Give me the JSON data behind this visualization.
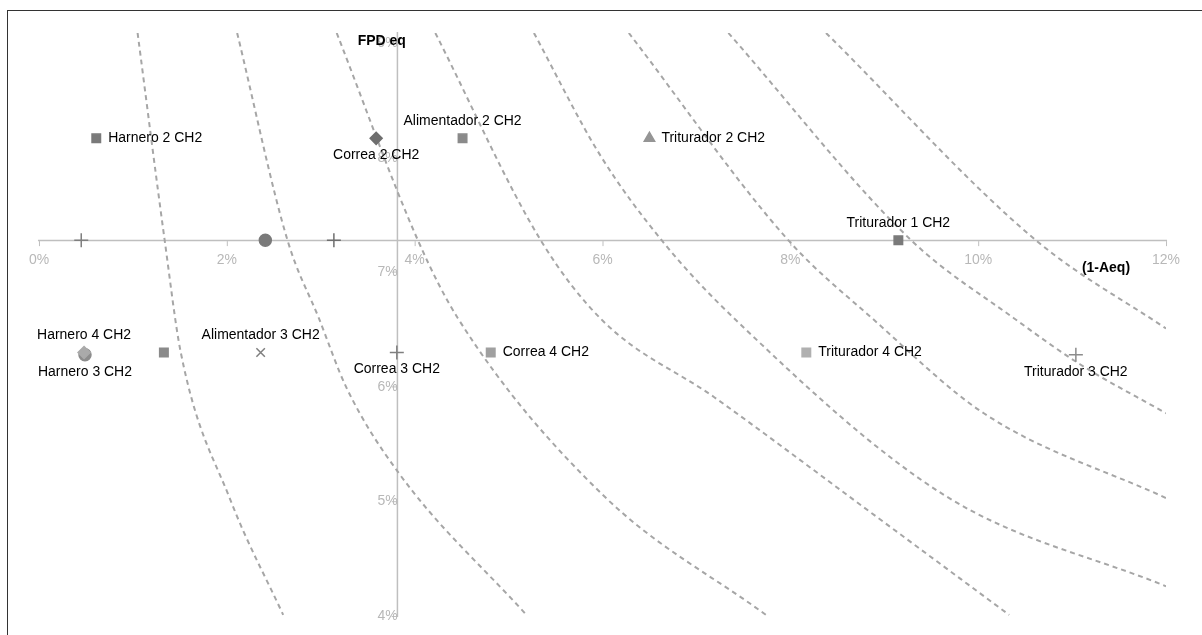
{
  "chart_data": {
    "type": "scatter",
    "xlabel": "(1-Aeq)",
    "ylabel": "FPD eq",
    "xlim": [
      0,
      12
    ],
    "ylim": [
      4,
      9.09
    ],
    "xticks": [
      {
        "value": 0,
        "label": "0%"
      },
      {
        "value": 2,
        "label": "2%"
      },
      {
        "value": 4,
        "label": "4%"
      },
      {
        "value": 6,
        "label": "6%"
      },
      {
        "value": 8,
        "label": "8%"
      },
      {
        "value": 10,
        "label": "10%"
      },
      {
        "value": 12,
        "label": "12%"
      }
    ],
    "yticks": [
      {
        "value": 4,
        "label": "4%"
      },
      {
        "value": 5,
        "label": "5%"
      },
      {
        "value": 6,
        "label": "6%"
      },
      {
        "value": 7,
        "label": "7%"
      },
      {
        "value": 8,
        "label": "8%"
      },
      {
        "value": 9,
        "label": "9%"
      }
    ],
    "series": [
      {
        "name": "Harnero 2 CH2",
        "marker": "square",
        "color": "#7a7a7a",
        "x": [
          0.61
        ],
        "values": [
          8.17
        ]
      },
      {
        "name": "Correa 2 CH2",
        "marker": "diamond",
        "color": "#6e6e6e",
        "x": [
          3.59
        ],
        "values": [
          8.17
        ]
      },
      {
        "name": "Alimentador 2 CH2",
        "marker": "square",
        "color": "#8a8a8a",
        "x": [
          4.51
        ],
        "values": [
          8.17
        ]
      },
      {
        "name": "Triturador 2 CH2",
        "marker": "triangle",
        "color": "#959595",
        "x": [
          6.5
        ],
        "values": [
          8.17
        ]
      },
      {
        "marker": "cross",
        "color": "#7f7f7f",
        "x": [
          0.45
        ],
        "values": [
          7.28
        ]
      },
      {
        "marker": "circle",
        "color": "#7a7a7a",
        "x": [
          2.41
        ],
        "values": [
          7.28
        ]
      },
      {
        "marker": "cross",
        "color": "#6e6e6e",
        "x": [
          3.14
        ],
        "values": [
          7.28
        ]
      },
      {
        "name": "Triturador 1 CH2",
        "marker": "square",
        "color": "#7a7a7a",
        "x": [
          9.15
        ],
        "values": [
          7.28
        ]
      },
      {
        "name": "Harnero 4 CH2",
        "marker": "diamond",
        "color": "#aaaaaa",
        "x": [
          0.48
        ],
        "values": [
          6.3
        ]
      },
      {
        "name": "Harnero 3 CH2",
        "marker": "circle",
        "color": "#8c8c8c",
        "x": [
          0.49
        ],
        "values": [
          6.28
        ]
      },
      {
        "marker": "square",
        "color": "#8a8a8a",
        "x": [
          1.33
        ],
        "values": [
          6.3
        ]
      },
      {
        "name": "Alimentador 3 CH2",
        "marker": "x",
        "color": "#7f7f7f",
        "x": [
          2.36
        ],
        "values": [
          6.3
        ]
      },
      {
        "name": "Correa 3 CH2",
        "marker": "cross",
        "color": "#7f7f7f",
        "x": [
          3.81
        ],
        "values": [
          6.3
        ]
      },
      {
        "name": "Correa 4 CH2",
        "marker": "square",
        "color": "#a0a0a0",
        "x": [
          4.81
        ],
        "values": [
          6.3
        ]
      },
      {
        "name": "Triturador 4 CH2",
        "marker": "square",
        "color": "#b0b0b0",
        "x": [
          8.17
        ],
        "values": [
          6.3
        ]
      },
      {
        "name": "Triturador 3 CH2",
        "marker": "cross",
        "color": "#8c8c8c",
        "x": [
          11.04
        ],
        "values": [
          6.28
        ]
      },
      {
        "type": "line",
        "marker": "none",
        "line_style": "dashed",
        "color": "#a6a6a6",
        "x": [
          1.05,
          1.34,
          1.51,
          2.04,
          2.6
        ],
        "values": [
          9.09,
          7.27,
          6.3,
          5.01,
          4.01
        ]
      },
      {
        "type": "line",
        "marker": "none",
        "line_style": "dashed",
        "color": "#a6a6a6",
        "x": [
          2.11,
          2.65,
          2.98,
          3.27,
          3.82,
          5.19
        ],
        "values": [
          9.09,
          7.27,
          6.6,
          6.0,
          5.26,
          4.01
        ]
      },
      {
        "type": "line",
        "marker": "none",
        "line_style": "dashed",
        "color": "#a6a6a6",
        "x": [
          3.17,
          4.04,
          4.46,
          6.0,
          7.74
        ],
        "values": [
          9.09,
          7.27,
          6.6,
          5.06,
          4.01
        ]
      },
      {
        "type": "line",
        "marker": "none",
        "line_style": "dashed",
        "color": "#a6a6a6",
        "x": [
          4.22,
          5.35,
          6.0,
          7.19,
          8.83,
          10.33
        ],
        "values": [
          9.09,
          7.27,
          6.58,
          5.91,
          4.92,
          4.01
        ]
      },
      {
        "type": "line",
        "marker": "none",
        "line_style": "dashed",
        "color": "#a6a6a6",
        "x": [
          5.27,
          5.97,
          6.64,
          7.4,
          9.65,
          12
        ],
        "values": [
          9.09,
          8.03,
          7.27,
          6.6,
          5.05,
          4.26
        ]
      },
      {
        "type": "line",
        "marker": "none",
        "line_style": "dashed",
        "color": "#a6a6a6",
        "x": [
          6.28,
          7.99,
          8.87,
          10.06,
          12
        ],
        "values": [
          9.09,
          7.27,
          6.6,
          5.77,
          5.03
        ]
      },
      {
        "type": "line",
        "marker": "none",
        "line_style": "dashed",
        "color": "#a6a6a6",
        "x": [
          7.34,
          9.3,
          10.38,
          11.08,
          12
        ],
        "values": [
          9.09,
          7.27,
          6.6,
          6.2,
          5.77
        ]
      },
      {
        "type": "line",
        "marker": "none",
        "line_style": "dashed",
        "color": "#a6a6a6",
        "x": [
          8.38,
          10.63,
          12
        ],
        "values": [
          9.09,
          7.27,
          6.51
        ]
      }
    ]
  }
}
